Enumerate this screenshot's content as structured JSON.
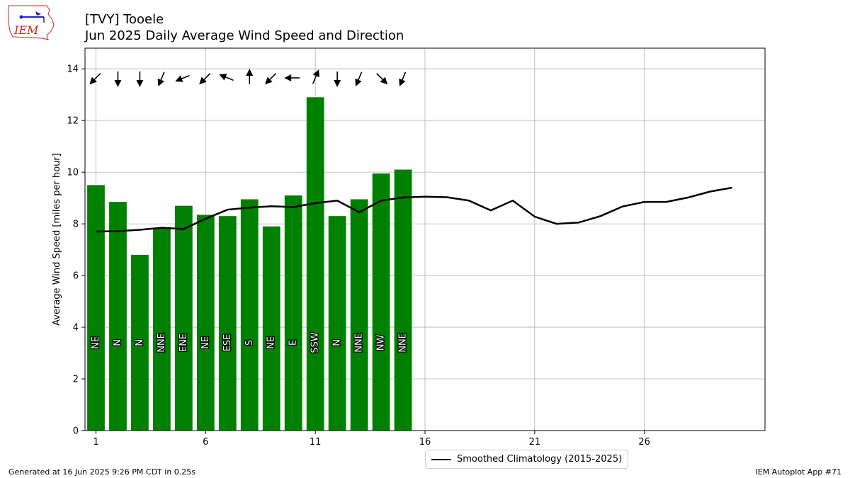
{
  "logo": {
    "text": "IEM"
  },
  "title": "[TVY] Tooele",
  "subtitle": "Jun 2025 Daily Average Wind Speed and Direction",
  "footer_left": "Generated at 16 Jun 2025 9:26 PM CDT in 0.25s",
  "footer_right": "IEM Autoplot App #71",
  "legend_label": "Smoothed Climatology (2015-2025)",
  "colors": {
    "bar": "#008000",
    "line": "#000000",
    "grid": "#b0b0b0",
    "logo": "#cc2222"
  },
  "chart_data": {
    "type": "bar",
    "ylabel": "Average Wind Speed [miles per hour]",
    "xlabel": "",
    "xlim": [
      0.5,
      31.5
    ],
    "ylim": [
      0,
      14.8
    ],
    "grid": true,
    "legend_placement": "bottom-center",
    "xticks": [
      1,
      6,
      11,
      16,
      21,
      26
    ],
    "xtick_labels": [
      "1",
      "6",
      "11",
      "16",
      "21",
      "26"
    ],
    "yticks": [
      0,
      2,
      4,
      6,
      8,
      10,
      12,
      14
    ],
    "ytick_labels": [
      "0",
      "2",
      "4",
      "6",
      "8",
      "10",
      "12",
      "14"
    ],
    "days": [
      1,
      2,
      3,
      4,
      5,
      6,
      7,
      8,
      9,
      10,
      11,
      12,
      13,
      14,
      15
    ],
    "values": [
      9.5,
      8.85,
      6.8,
      7.85,
      8.7,
      8.35,
      8.3,
      8.95,
      7.9,
      9.1,
      12.9,
      8.3,
      8.95,
      9.95,
      10.1
    ],
    "directions": [
      "NE",
      "N",
      "N",
      "NNE",
      "ENE",
      "NE",
      "ESE",
      "S",
      "NE",
      "E",
      "SSW",
      "N",
      "NNE",
      "NW",
      "NNE"
    ],
    "direction_degrees": [
      45,
      0,
      0,
      22.5,
      67.5,
      45,
      112.5,
      180,
      45,
      90,
      202.5,
      0,
      22.5,
      315,
      22.5
    ],
    "series": [
      {
        "name": "Smoothed Climatology (2015-2025)",
        "type": "line",
        "x": [
          1,
          2,
          3,
          4,
          5,
          6,
          7,
          8,
          9,
          10,
          11,
          12,
          13,
          14,
          15,
          16,
          17,
          18,
          19,
          20,
          21,
          22,
          23,
          24,
          25,
          26,
          27,
          28,
          29,
          30
        ],
        "values": [
          7.7,
          7.72,
          7.77,
          7.85,
          7.8,
          8.2,
          8.55,
          8.63,
          8.68,
          8.65,
          8.8,
          8.9,
          8.45,
          8.9,
          9.02,
          9.05,
          9.03,
          8.9,
          8.52,
          8.9,
          8.28,
          8.0,
          8.05,
          8.3,
          8.67,
          8.85,
          8.85,
          9.02,
          9.25,
          9.4
        ]
      }
    ]
  }
}
